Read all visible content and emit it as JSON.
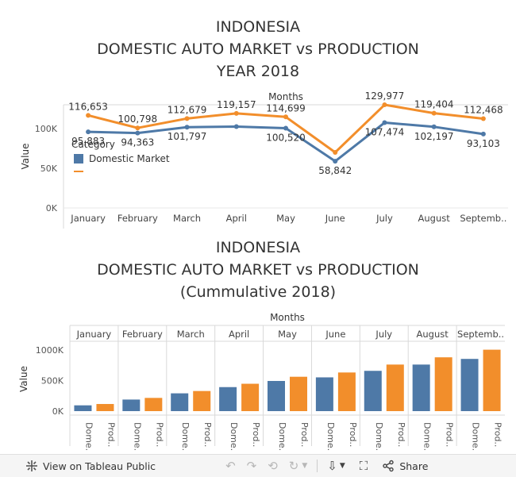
{
  "chart_data": [
    {
      "type": "line",
      "title_lines": [
        "INDONESIA",
        "DOMESTIC AUTO MARKET vs PRODUCTION",
        "YEAR 2018"
      ],
      "column_header": "Months",
      "ylabel": "Value",
      "categories": [
        "January",
        "February",
        "March",
        "April",
        "May",
        "June",
        "July",
        "August",
        "Septemb.."
      ],
      "yticks": [
        "100K",
        "50K",
        "0K"
      ],
      "ytick_values": [
        100000,
        50000,
        0
      ],
      "ylim": [
        0,
        130000
      ],
      "legend": {
        "title": "Category",
        "items": [
          "Domestic Market",
          ""
        ]
      },
      "series": [
        {
          "name": "Domestic Market",
          "color": "#4e79a7",
          "values": [
            95883,
            94363,
            101797,
            102500,
            100520,
            58842,
            107474,
            102197,
            93103
          ],
          "labels": [
            "95,883",
            "94,363",
            "101,797",
            "",
            "100,520",
            "58,842",
            "107,474",
            "102,197",
            "93,103"
          ]
        },
        {
          "name": "",
          "color": "#f28e2b",
          "values": [
            116653,
            100798,
            112679,
            119157,
            114699,
            70000,
            129977,
            119404,
            112468
          ],
          "labels": [
            "116,653",
            "100,798",
            "112,679",
            "119,157",
            "114,699",
            "",
            "129,977",
            "119,404",
            "112,468"
          ]
        }
      ]
    },
    {
      "type": "bar",
      "title_lines": [
        "INDONESIA",
        "DOMESTIC AUTO MARKET vs PRODUCTION",
        "(Cummulative 2018)"
      ],
      "column_header": "Months",
      "ylabel": "Value",
      "categories": [
        "January",
        "February",
        "March",
        "April",
        "May",
        "June",
        "July",
        "August",
        "Septemb.."
      ],
      "sub_labels": [
        "Dome..",
        "Prod.."
      ],
      "yticks": [
        "1000K",
        "500K",
        "0K"
      ],
      "ytick_values": [
        1000000,
        500000,
        0
      ],
      "ylim": [
        0,
        1120000
      ],
      "series": [
        {
          "name": "Dome..",
          "color": "#4e79a7",
          "values": [
            95000,
            190000,
            292000,
            394000,
            495000,
            554000,
            661000,
            764000,
            857000
          ]
        },
        {
          "name": "Prod..",
          "color": "#f28e2b",
          "values": [
            117000,
            217000,
            330000,
            449000,
            564000,
            634000,
            764000,
            883000,
            1008000
          ]
        }
      ]
    }
  ],
  "toolbar": {
    "view_label": "View on Tableau Public",
    "share_label": "Share"
  }
}
